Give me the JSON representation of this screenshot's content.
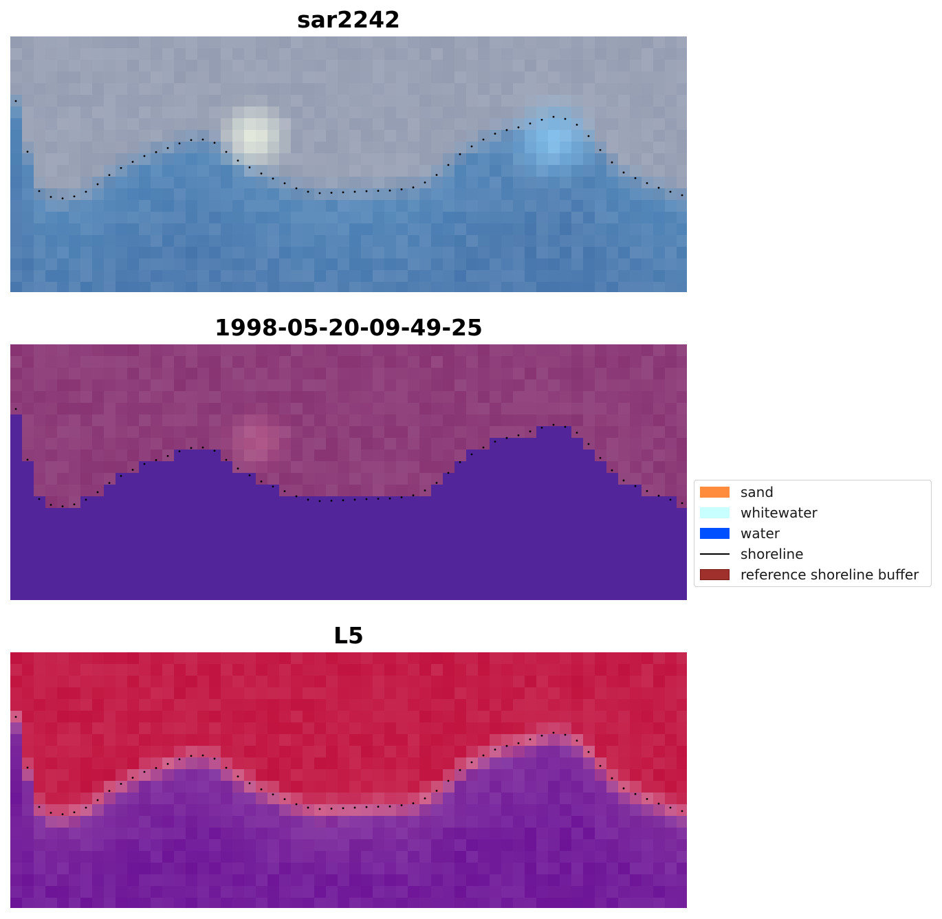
{
  "panels": [
    {
      "title": "sar2242",
      "kind": "rgb"
    },
    {
      "title": "1998-05-20-09-49-25",
      "kind": "classified"
    },
    {
      "title": "L5",
      "kind": "index"
    }
  ],
  "legend": {
    "items": [
      {
        "label": "sand",
        "color": "#ff8c3c",
        "kind": "patch"
      },
      {
        "label": "whitewater",
        "color": "#c8ffff",
        "kind": "patch"
      },
      {
        "label": "water",
        "color": "#0050ff",
        "kind": "patch"
      },
      {
        "label": "shoreline",
        "color": "#000000",
        "kind": "line"
      },
      {
        "label": "reference shoreline buffer",
        "color": "#a0302c",
        "kind": "patch"
      }
    ]
  },
  "colors": {
    "rgb_sky": "#9aa2b6",
    "rgb_water": "#5a8cbc",
    "class_land": "#8e3e7a",
    "class_water": "#52259a",
    "index_land": "#c41e48",
    "index_water": "#8232a0",
    "index_edge": "#d0608a"
  }
}
